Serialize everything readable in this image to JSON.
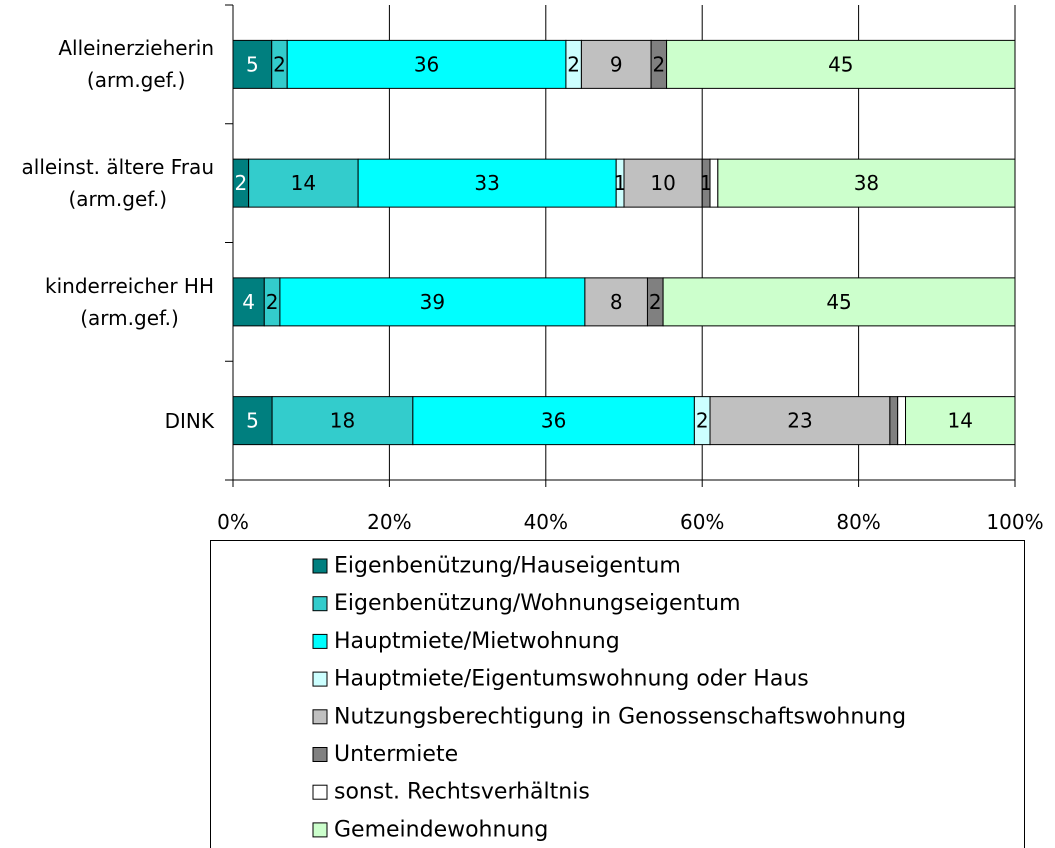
{
  "chart_data": {
    "type": "bar",
    "orientation": "horizontal",
    "stacked": "percent",
    "categories": [
      "Alleinerzieherin\n(arm.gef.)",
      "alleinst. ältere Frau\n(arm.gef.)",
      "kinderreicher HH\n(arm.gef.)",
      "DINK"
    ],
    "series": [
      {
        "name": "Eigenbenützung/Hauseigentum",
        "color": "#007f7f",
        "label_color": "#ffffff",
        "values": [
          5,
          2,
          4,
          5
        ],
        "value_labels": [
          "5",
          "2",
          "4",
          "5"
        ]
      },
      {
        "name": "Eigenbenützung/Wohnungseigentum",
        "color": "#33cccc",
        "label_color": "#000000",
        "values": [
          2,
          14,
          2,
          18
        ],
        "value_labels": [
          "2",
          "14",
          "2",
          "18"
        ]
      },
      {
        "name": "Hauptmiete/Mietwohnung",
        "color": "#00ffff",
        "label_color": "#000000",
        "values": [
          36,
          33,
          39,
          36
        ],
        "value_labels": [
          "36",
          "33",
          "39",
          "36"
        ]
      },
      {
        "name": "Hauptmiete/Eigentumswohnung oder Haus",
        "color": "#ccffff",
        "label_color": "#000000",
        "values": [
          2,
          1,
          0,
          2
        ],
        "value_labels": [
          "2",
          "1",
          null,
          "2"
        ]
      },
      {
        "name": "Nutzungsberechtigung in Genossenschaftswohnung",
        "color": "#c0c0c0",
        "label_color": "#000000",
        "values": [
          9,
          10,
          8,
          23
        ],
        "value_labels": [
          "9",
          "10",
          "8",
          "23"
        ]
      },
      {
        "name": "Untermiete",
        "color": "#808080",
        "label_color": "#000000",
        "values": [
          2,
          1,
          2,
          1
        ],
        "value_labels": [
          "2",
          "1",
          "2",
          null
        ]
      },
      {
        "name": "sonst. Rechtsverhältnis",
        "color": "#ffffff",
        "label_color": "#000000",
        "values": [
          0,
          1,
          0,
          1
        ],
        "value_labels": [
          null,
          null,
          null,
          null
        ]
      },
      {
        "name": "Gemeindewohnung",
        "color": "#ccffcc",
        "label_color": "#000000",
        "values": [
          45,
          38,
          45,
          14
        ],
        "value_labels": [
          "45",
          "38",
          "45",
          "14"
        ]
      }
    ],
    "xlim": [
      0,
      100
    ],
    "xticks": [
      {
        "value": 0,
        "label": "0%"
      },
      {
        "value": 20,
        "label": "20%"
      },
      {
        "value": 40,
        "label": "40%"
      },
      {
        "value": 60,
        "label": "60%"
      },
      {
        "value": 80,
        "label": "80%"
      },
      {
        "value": 100,
        "label": "100%"
      }
    ],
    "grid": true,
    "legend": "bottom"
  }
}
